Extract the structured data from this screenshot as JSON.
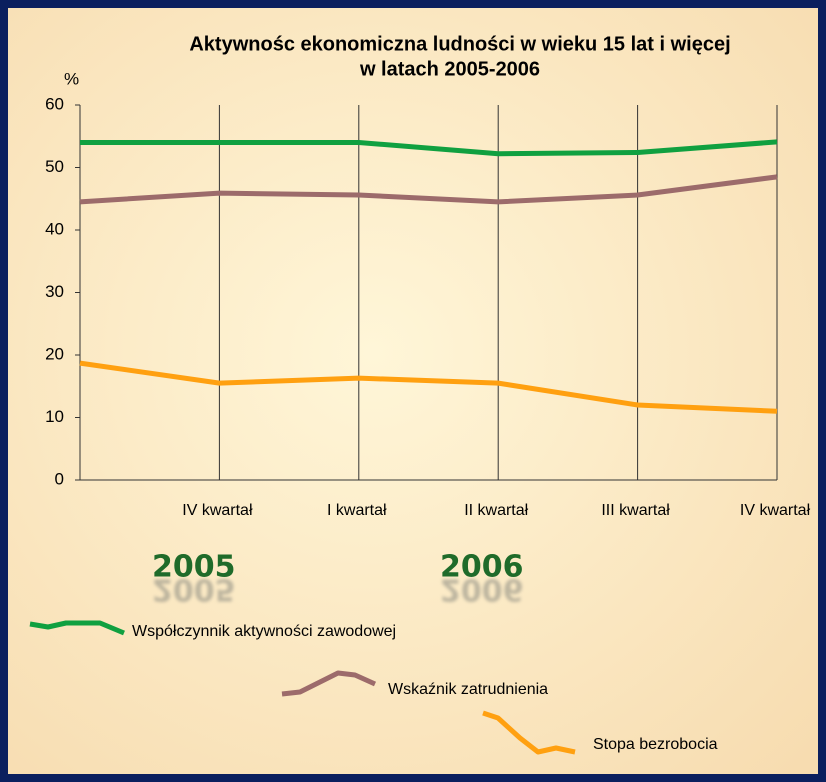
{
  "chart_data": {
    "type": "line",
    "title": [
      "Aktywnośc ekonomiczna ludności w wieku 15 lat i więcej",
      "w latach 2005-2006"
    ],
    "y_label": "%",
    "categories": [
      null,
      "IV kwartał",
      "I kwartał",
      "II kwartał",
      "III kwartał",
      "IV kwartał"
    ],
    "annotations": [
      "2005",
      "2006"
    ],
    "series": [
      {
        "name": "Współczynnik aktywności zawodowej",
        "color": "#10a040",
        "values": [
          54.0,
          54.0,
          54.0,
          52.2,
          52.4,
          54.1
        ]
      },
      {
        "name": "Wskaźnik zatrudnienia",
        "color": "#9c6b6b",
        "values": [
          44.5,
          45.9,
          45.6,
          44.5,
          45.6,
          48.5
        ]
      },
      {
        "name": "Stopa bezrobocia",
        "color": "#ffa010",
        "values": [
          18.7,
          15.5,
          16.3,
          15.5,
          12.0,
          11.0
        ]
      }
    ],
    "ylim": [
      0,
      60
    ],
    "yticks": [
      0,
      10,
      20,
      30,
      40,
      50,
      60
    ]
  }
}
